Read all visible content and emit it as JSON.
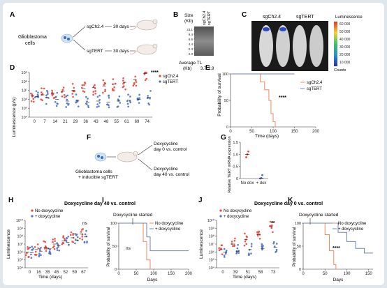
{
  "panels": {
    "a": {
      "letter": "A",
      "source_label": "Glioblastoma",
      "source_label2": "cells",
      "arm1": "sgCh2.4",
      "arm2": "sgTERT",
      "duration": "30 days"
    },
    "b": {
      "letter": "B",
      "size_label": "Size",
      "size_unit": "(Kb)",
      "lane1": "sgCh2.4",
      "lane2": "sgTERT",
      "ladder": [
        "23.1",
        "9.4",
        "6.6",
        "4.4",
        "2.3",
        "2.0"
      ],
      "tl_label": "Average TL",
      "tl_unit": "(Kb)",
      "tl_values": [
        "3.7",
        "2.9"
      ]
    },
    "c": {
      "letter": "C",
      "col1": "sgCh2.4",
      "col2": "sgTERT",
      "scale_title": "Luminescence",
      "scale_ticks": [
        "60 000",
        "50 000",
        "40 000",
        "30 000",
        "20 000",
        "10 000"
      ],
      "scale_unit": "Counts"
    },
    "d": {
      "letter": "D",
      "ylabel": "Luminescence (p/s)",
      "xticks": [
        "0",
        "7",
        "14",
        "21",
        "29",
        "36",
        "43",
        "48",
        "55",
        "61",
        "69",
        "74"
      ],
      "yticks": [
        "10⁹",
        "10⁸",
        "10⁷",
        "10⁶",
        "10⁵",
        "10⁴"
      ],
      "legend": [
        "sgCh2.4",
        "sgTERT"
      ],
      "significance": "****"
    },
    "e": {
      "letter": "E",
      "ylabel": "Probability of survival",
      "xlabel": "Time (days)",
      "xticks": [
        "0",
        "50",
        "100",
        "150",
        "200"
      ],
      "yticks": [
        "100",
        "50",
        "0"
      ],
      "legend": [
        "sgCh2.4",
        "sgTERT"
      ],
      "significance": "****"
    },
    "f": {
      "letter": "F",
      "source_label": "Glioblastoma cells",
      "source_label2": "+ inducible sgTERT",
      "arm1_a": "Doxycycline",
      "arm1_b": "day 0 vs. control",
      "arm2_a": "Doxycycline",
      "arm2_b": "day 40 vs. control"
    },
    "g": {
      "letter": "G",
      "ylabel": "Relative TERT mRNA expression",
      "yticks": [
        "1.5",
        "1.0",
        "0.5",
        "0"
      ],
      "xticks": [
        "No dox",
        "+ dox"
      ]
    },
    "h": {
      "letter": "H",
      "ylabel": "Luminescence",
      "xlabel": "Time (days)",
      "xticks": [
        "0",
        "16",
        "35",
        "45",
        "52",
        "59",
        "67"
      ],
      "yticks": [
        "10¹⁰",
        "10⁹",
        "10⁸",
        "10⁷",
        "10⁶",
        "10⁵",
        "10⁴"
      ],
      "legend": [
        "No doxycycline",
        "+ doxycycline"
      ],
      "significance": "ns"
    },
    "i": {
      "letter": "I",
      "started": "Doxycycline started",
      "ylabel": "Probability of survival",
      "xlabel": "Days",
      "xticks": [
        "0",
        "50",
        "100",
        "150",
        "200"
      ],
      "yticks": [
        "100",
        "50",
        "0"
      ],
      "legend": [
        "No doxycycline",
        "+ doxycycline"
      ],
      "significance": "ns"
    },
    "j": {
      "letter": "J",
      "ylabel": "Luminescence",
      "xlabel": "Time (days)",
      "xticks": [
        "0",
        "39",
        "51",
        "58",
        "73"
      ],
      "yticks": [
        "10¹⁰",
        "10⁹",
        "10⁸",
        "10⁷",
        "10⁶",
        "10⁵",
        "10⁴"
      ],
      "legend": [
        "No doxycycline",
        "+ doxycycline"
      ],
      "significance": "**"
    },
    "k": {
      "letter": "K",
      "started": "Doxycycline started",
      "ylabel": "Probability of survival",
      "xlabel": "Days",
      "xticks": [
        "0",
        "50",
        "100",
        "150"
      ],
      "yticks": [
        "100",
        "50",
        "0"
      ],
      "legend": [
        "No doxycycline",
        "+ doxycycline"
      ],
      "significance": "****"
    }
  },
  "titles": {
    "hi": "Doxycycline day 40 vs. control",
    "jk": "Doxycycline day 0 vs. control"
  },
  "colors": {
    "red": "#e8473c",
    "blue": "#4d6fc7",
    "orange": "#f08a5d",
    "slate": "#6f83b7"
  },
  "chart_data": [
    {
      "type": "scatter",
      "panel": "D",
      "categories": [
        "0",
        "7",
        "14",
        "21",
        "29",
        "36",
        "43",
        "48",
        "55",
        "61",
        "69",
        "74"
      ],
      "series": [
        {
          "name": "sgCh2.4",
          "values": [
            6.4,
            6.5,
            6.7,
            6.9,
            7.0,
            7.2,
            7.3,
            7.5,
            7.7,
            7.9,
            8.2,
            8.9
          ]
        },
        {
          "name": "sgTERT",
          "values": [
            6.3,
            6.2,
            6.0,
            5.8,
            5.9,
            5.7,
            5.8,
            5.7,
            5.8,
            5.9,
            6.0,
            6.2
          ]
        }
      ],
      "ylabel": "Luminescence (p/s)",
      "ylim": [
        4,
        9
      ]
    },
    {
      "type": "line",
      "panel": "E",
      "series": [
        {
          "name": "sgCh2.4",
          "x": [
            0,
            60,
            70,
            80,
            90,
            95,
            100,
            105
          ],
          "y": [
            100,
            100,
            85,
            70,
            50,
            25,
            10,
            0
          ]
        },
        {
          "name": "sgTERT",
          "x": [
            0,
            150
          ],
          "y": [
            100,
            100
          ]
        }
      ],
      "xlabel": "Time (days)",
      "ylabel": "Probability of survival",
      "xlim": [
        0,
        200
      ],
      "ylim": [
        0,
        100
      ]
    },
    {
      "type": "scatter",
      "panel": "G",
      "categories": [
        "No dox",
        "+ dox"
      ],
      "values": [
        1.0,
        0.02
      ],
      "ylabel": "Relative TERT mRNA expression",
      "ylim": [
        0,
        1.5
      ]
    },
    {
      "type": "scatter",
      "panel": "H",
      "categories": [
        "0",
        "16",
        "35",
        "45",
        "52",
        "59",
        "67"
      ],
      "series": [
        {
          "name": "No doxycycline",
          "values": [
            6.0,
            6.3,
            6.6,
            7.0,
            7.4,
            7.8,
            8.3
          ]
        },
        {
          "name": "+ doxycycline",
          "values": [
            5.9,
            6.1,
            6.4,
            6.8,
            7.2,
            7.5,
            7.9
          ]
        }
      ],
      "ylabel": "Luminescence",
      "xlabel": "Time (days)",
      "ylim": [
        4,
        10
      ]
    },
    {
      "type": "line",
      "panel": "I",
      "series": [
        {
          "name": "No doxycycline",
          "x": [
            0,
            60,
            70,
            80,
            90
          ],
          "y": [
            100,
            100,
            60,
            20,
            0
          ]
        },
        {
          "name": "+ doxycycline",
          "x": [
            0,
            70,
            80,
            90,
            200
          ],
          "y": [
            100,
            100,
            70,
            40,
            40
          ]
        }
      ],
      "xlabel": "Days",
      "ylabel": "Probability of survival",
      "xlim": [
        0,
        200
      ],
      "ylim": [
        0,
        100
      ]
    },
    {
      "type": "scatter",
      "panel": "J",
      "categories": [
        "0",
        "39",
        "51",
        "58",
        "73"
      ],
      "series": [
        {
          "name": "No doxycycline",
          "values": [
            6.3,
            7.0,
            7.6,
            8.2,
            9.2
          ]
        },
        {
          "name": "+ doxycycline",
          "values": [
            6.0,
            6.1,
            6.3,
            6.4,
            6.6
          ]
        }
      ],
      "ylabel": "Luminescence",
      "xlabel": "Time (days)",
      "ylim": [
        4,
        10
      ]
    },
    {
      "type": "line",
      "panel": "K",
      "series": [
        {
          "name": "No doxycycline",
          "x": [
            0,
            40,
            50,
            60,
            70,
            75
          ],
          "y": [
            100,
            100,
            75,
            40,
            10,
            0
          ]
        },
        {
          "name": "+ doxycycline",
          "x": [
            0,
            60,
            80,
            100,
            120,
            140,
            160
          ],
          "y": [
            100,
            100,
            80,
            60,
            45,
            35,
            35
          ]
        }
      ],
      "xlabel": "Days",
      "ylabel": "Probability of survival",
      "xlim": [
        0,
        160
      ],
      "ylim": [
        0,
        100
      ]
    }
  ]
}
